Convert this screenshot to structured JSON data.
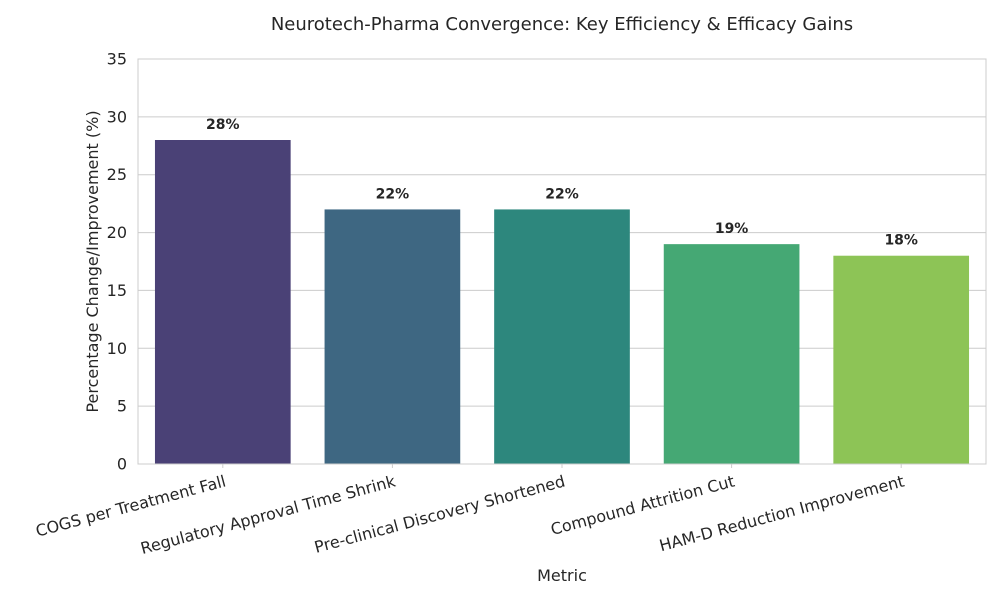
{
  "chart_data": {
    "type": "bar",
    "title": "Neurotech-Pharma Convergence: Key Efficiency & Efficacy Gains",
    "xlabel": "Metric",
    "ylabel": "Percentage Change/Improvement (%)",
    "categories": [
      "COGS per Treatment Fall",
      "Regulatory Approval Time Shrink",
      "Pre-clinical Discovery Shortened",
      "Compound Attrition Cut",
      "HAM-D Reduction Improvement"
    ],
    "values": [
      28,
      22,
      22,
      19,
      18
    ],
    "data_labels": [
      "28%",
      "22%",
      "22%",
      "19%",
      "18%"
    ],
    "colors": [
      "#4a4176",
      "#3e6782",
      "#2d877d",
      "#45a874",
      "#8dc456"
    ],
    "ylim": [
      0,
      35
    ],
    "yticks": [
      0,
      5,
      10,
      15,
      20,
      25,
      30,
      35
    ],
    "grid": true,
    "legend": "none"
  }
}
